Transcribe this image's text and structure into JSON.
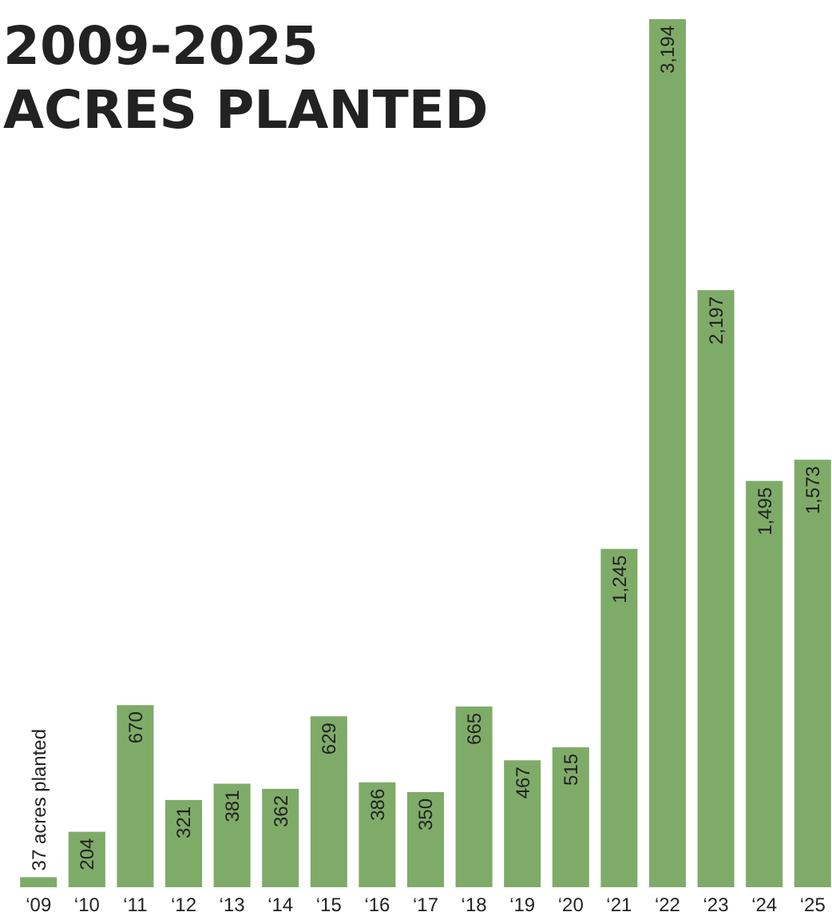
{
  "chart_data": {
    "type": "bar",
    "title": "2009-2025\nACRES PLANTED",
    "categories": [
      "‘09",
      "‘10",
      "‘11",
      "‘12",
      "‘13",
      "‘14",
      "‘15",
      "‘16",
      "‘17",
      "‘18",
      "‘19",
      "‘20",
      "‘21",
      "‘22",
      "‘23",
      "‘24",
      "‘25"
    ],
    "values": [
      37,
      204,
      670,
      321,
      381,
      362,
      629,
      386,
      350,
      665,
      467,
      515,
      1245,
      3194,
      2197,
      1495,
      1573
    ],
    "value_labels": [
      "37 acres planted",
      "204",
      "670",
      "321",
      "381",
      "362",
      "629",
      "386",
      "350",
      "665",
      "467",
      "515",
      "1,245",
      "3,194",
      "2,197",
      "1,495",
      "1,573"
    ],
    "color": "#7fab69"
  }
}
